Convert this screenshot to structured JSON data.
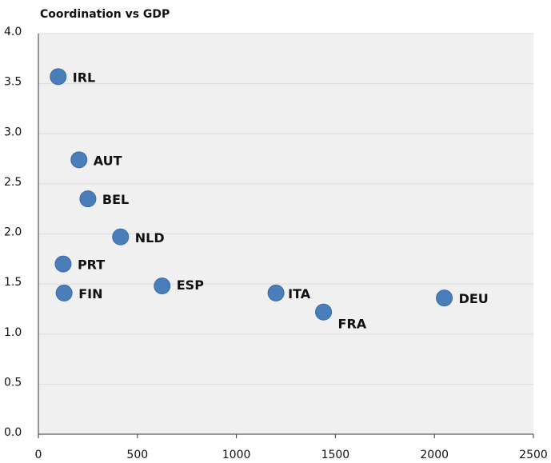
{
  "chart_data": {
    "type": "scatter",
    "title": "Coordination vs GDP",
    "labels": [
      "IRL",
      "AUT",
      "BEL",
      "NLD",
      "PRT",
      "FIN",
      "ESP",
      "ITA",
      "FRA",
      "DEU"
    ],
    "x": [
      100,
      205,
      250,
      415,
      125,
      130,
      625,
      1200,
      1440,
      2050
    ],
    "y": [
      3.57,
      2.74,
      2.35,
      1.97,
      1.7,
      1.41,
      1.48,
      1.41,
      1.22,
      1.36
    ],
    "color": "#4a7ebb",
    "xlim": [
      0,
      2500
    ],
    "xticks": [
      0,
      500,
      1000,
      1500,
      2000,
      2500
    ],
    "ylim": [
      0,
      4
    ],
    "yticks": [
      {
        "value": 0,
        "label": "0.0"
      },
      0.5,
      {
        "value": 1,
        "label": "1.0"
      },
      1.5,
      {
        "value": 2,
        "label": "2.0"
      },
      2.5,
      {
        "value": 3,
        "label": "3.0"
      },
      3.5,
      {
        "value": 4,
        "label": "4.0"
      }
    ],
    "grid": true
  }
}
